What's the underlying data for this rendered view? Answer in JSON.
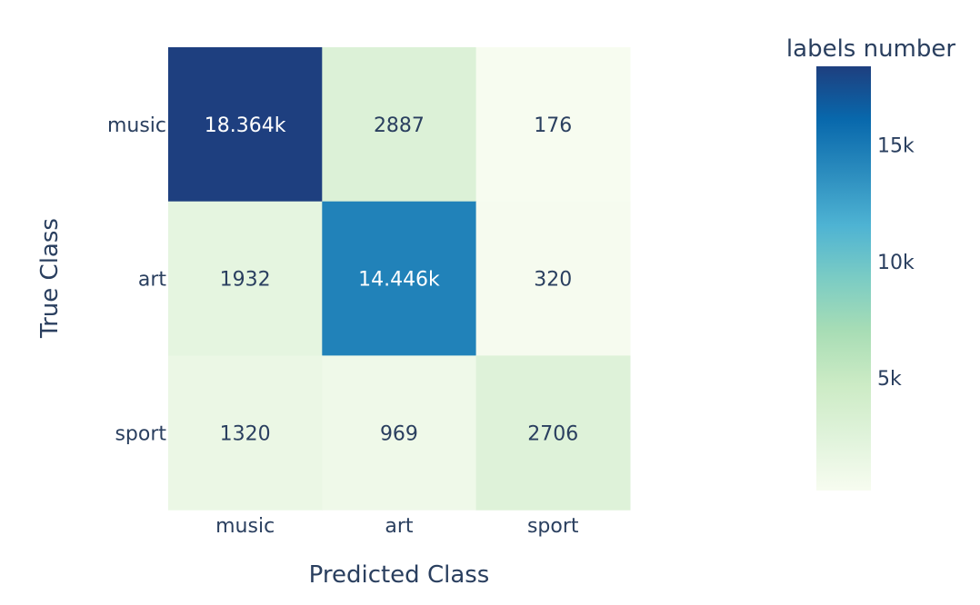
{
  "chart_data": {
    "type": "heatmap",
    "xlabel": "Predicted Class",
    "ylabel": "True Class",
    "x_categories": [
      "music",
      "art",
      "sport"
    ],
    "y_categories": [
      "music",
      "art",
      "sport"
    ],
    "z": [
      [
        18364,
        2887,
        176
      ],
      [
        1932,
        14446,
        320
      ],
      [
        1320,
        969,
        2706
      ]
    ],
    "cell_text": [
      [
        "18.364k",
        "2887",
        "176"
      ],
      [
        "1932",
        "14.446k",
        "320"
      ],
      [
        "1320",
        "969",
        "2706"
      ]
    ],
    "colorbar": {
      "title": "labels number",
      "min": 176,
      "max": 18364,
      "ticks": [
        {
          "value": 5000,
          "label": "5k"
        },
        {
          "value": 10000,
          "label": "10k"
        },
        {
          "value": 15000,
          "label": "15k"
        }
      ]
    },
    "colorscale": [
      "#f7fcf0",
      "#e0f3db",
      "#ccebc5",
      "#a8ddb5",
      "#7bccc4",
      "#4eb3d3",
      "#2b8cbe",
      "#0868ac",
      "#1e3f7f"
    ],
    "label_color_dark": "#2a3f5f",
    "label_color_light": "#ffffff",
    "axis_text_color": "#2a3f5f"
  }
}
